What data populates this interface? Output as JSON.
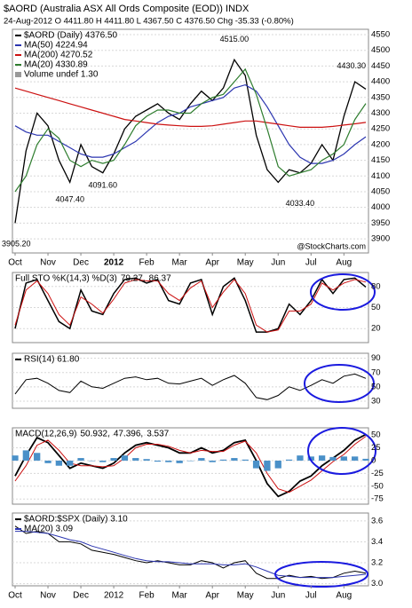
{
  "chart_data": [
    {
      "type": "line",
      "title": "$AORD (Australia ASX All Ords Composite (EOD)) INDX",
      "subtitle": "24-Aug-2012  O 4411.80  H 4411.80  L 4367.50  C 4376.50  Chg -35.33 (-0.80%)",
      "watermark": "@StockCharts.com",
      "categories": [
        "Oct",
        null,
        null,
        "Nov",
        null,
        null,
        "Dec",
        null,
        null,
        "2012",
        null,
        null,
        "Feb",
        null,
        null,
        "Mar",
        null,
        null,
        "Apr",
        null,
        null,
        "May",
        null,
        null,
        "Jun",
        null,
        null,
        "Jul",
        null,
        null,
        "Aug",
        null,
        null
      ],
      "series": [
        {
          "name": "$AORD (Daily) 4376.50",
          "color": "#000000",
          "width": 1.3,
          "values": [
            3950,
            4180,
            4300,
            4260,
            4150,
            4080,
            4200,
            4130,
            4110,
            4170,
            4250,
            4290,
            4310,
            4330,
            4300,
            4280,
            4330,
            4370,
            4340,
            4380,
            4470,
            4420,
            4230,
            4120,
            4080,
            4120,
            4110,
            4140,
            4200,
            4150,
            4290,
            4400,
            4376.5
          ]
        },
        {
          "name": "MA(50) 4224.94",
          "color": "#2b35b0",
          "width": 1.2,
          "values": [
            4260,
            4240,
            4230,
            4230,
            4210,
            4190,
            4170,
            4160,
            4160,
            4170,
            4190,
            4210,
            4240,
            4270,
            4290,
            4300,
            4320,
            4330,
            4340,
            4350,
            4380,
            4390,
            4370,
            4320,
            4260,
            4200,
            4160,
            4140,
            4140,
            4150,
            4170,
            4200,
            4224.94
          ]
        },
        {
          "name": "MA(200) 4270.52",
          "color": "#cc1111",
          "width": 1.2,
          "values": [
            4380,
            4370,
            4360,
            4350,
            4340,
            4330,
            4320,
            4310,
            4300,
            4290,
            4280,
            4275,
            4270,
            4265,
            4262,
            4260,
            4258,
            4258,
            4260,
            4265,
            4270,
            4275,
            4275,
            4270,
            4265,
            4260,
            4255,
            4255,
            4255,
            4258,
            4262,
            4266,
            4270.52
          ]
        },
        {
          "name": "MA(20) 4330.89",
          "color": "#2e7d2e",
          "width": 1.2,
          "values": [
            4050,
            4100,
            4200,
            4250,
            4220,
            4150,
            4130,
            4150,
            4140,
            4150,
            4200,
            4260,
            4290,
            4310,
            4310,
            4300,
            4300,
            4330,
            4350,
            4360,
            4400,
            4440,
            4360,
            4250,
            4130,
            4100,
            4110,
            4120,
            4150,
            4170,
            4200,
            4280,
            4330.89
          ]
        }
      ],
      "volume_label": "Volume undef 1.30",
      "annotations": [
        {
          "label": "3905.20",
          "value": 3905.2,
          "point": 0
        },
        {
          "label": "4047.40",
          "value": 4047.4,
          "point": 5
        },
        {
          "label": "4091.60",
          "value": 4091.6,
          "point": 8
        },
        {
          "label": "4515.00",
          "value": 4515,
          "point": 20
        },
        {
          "label": "4033.40",
          "value": 4033.4,
          "point": 26
        },
        {
          "label": "4430.30",
          "value": 4430.3,
          "point": 32
        }
      ],
      "ylim": [
        3855,
        4567
      ],
      "yticks": [
        3900,
        3950,
        4000,
        4050,
        4100,
        4150,
        4200,
        4250,
        4300,
        4350,
        4400,
        4450,
        4500,
        4550
      ],
      "grid": true
    },
    {
      "type": "line",
      "title": "Full STO %K(14,3) %D(3)",
      "series": [
        {
          "name": "79.27,",
          "color": "#000000",
          "width": 1.5,
          "values": [
            20,
            85,
            90,
            60,
            30,
            20,
            75,
            45,
            40,
            70,
            90,
            92,
            85,
            90,
            60,
            55,
            85,
            90,
            40,
            80,
            92,
            60,
            15,
            15,
            20,
            55,
            40,
            60,
            90,
            70,
            90,
            92,
            79.27
          ]
        },
        {
          "name": "86.37",
          "color": "#cc1111",
          "width": 1,
          "values": [
            25,
            75,
            88,
            70,
            40,
            25,
            65,
            55,
            42,
            62,
            85,
            90,
            88,
            88,
            70,
            60,
            78,
            88,
            50,
            72,
            90,
            70,
            25,
            15,
            18,
            45,
            45,
            55,
            85,
            75,
            85,
            90,
            86.37
          ]
        }
      ],
      "ylim": [
        0,
        100
      ],
      "yticks": [
        20,
        50,
        80
      ],
      "grid": true
    },
    {
      "type": "line",
      "series": [
        {
          "name": "RSI(14) 61.80",
          "color": "#000000",
          "width": 1,
          "values": [
            40,
            60,
            62,
            55,
            45,
            42,
            58,
            50,
            48,
            55,
            62,
            64,
            60,
            62,
            55,
            54,
            58,
            62,
            52,
            60,
            66,
            55,
            35,
            32,
            38,
            50,
            45,
            52,
            60,
            55,
            65,
            68,
            61.8
          ]
        }
      ],
      "ylim": [
        20,
        97
      ],
      "yticks": [
        30,
        50,
        70,
        90
      ],
      "grid": true
    },
    {
      "type": "line",
      "title": "MACD(12,26,9)",
      "series": [
        {
          "name": "50.932,",
          "color": "#000000",
          "width": 1.8,
          "values": [
            -30,
            10,
            45,
            35,
            10,
            -15,
            -5,
            -10,
            -15,
            -5,
            15,
            30,
            35,
            30,
            25,
            15,
            15,
            25,
            15,
            20,
            35,
            40,
            0,
            -45,
            -70,
            -60,
            -40,
            -30,
            -10,
            5,
            20,
            40,
            50.932
          ]
        },
        {
          "name": "47.396,",
          "color": "#cc1111",
          "width": 1,
          "values": [
            -40,
            -10,
            30,
            40,
            20,
            -5,
            -10,
            -10,
            -12,
            -10,
            5,
            25,
            32,
            32,
            28,
            20,
            15,
            20,
            18,
            18,
            30,
            38,
            15,
            -25,
            -55,
            -62,
            -50,
            -38,
            -20,
            -2,
            12,
            32,
            47.396
          ]
        },
        {
          "name": "3.537",
          "color": "#4a90c8",
          "type": "bar",
          "values": [
            10,
            20,
            15,
            -5,
            -10,
            -10,
            5,
            0,
            -3,
            5,
            10,
            5,
            3,
            -2,
            -3,
            -5,
            0,
            5,
            -3,
            2,
            5,
            2,
            -15,
            -20,
            -15,
            2,
            10,
            8,
            10,
            7,
            8,
            8,
            3.537
          ]
        }
      ],
      "ylim": [
        -85,
        64
      ],
      "yticks": [
        -75,
        -50,
        -25,
        0,
        25,
        50
      ],
      "grid": true
    },
    {
      "type": "line",
      "categories": [
        "Oct",
        null,
        null,
        "Nov",
        null,
        null,
        "Dec",
        null,
        null,
        "2012",
        null,
        null,
        "Feb",
        null,
        null,
        "Mar",
        null,
        null,
        "Apr",
        null,
        null,
        "May",
        null,
        null,
        "Jun",
        null,
        null,
        "Jul",
        null,
        null,
        "Aug",
        null,
        null
      ],
      "series": [
        {
          "name": "$AORD:$SPX (Daily) 3.10",
          "color": "#000000",
          "width": 1,
          "values": [
            3.55,
            3.48,
            3.5,
            3.48,
            3.4,
            3.4,
            3.38,
            3.32,
            3.3,
            3.28,
            3.25,
            3.22,
            3.2,
            3.22,
            3.2,
            3.18,
            3.18,
            3.22,
            3.2,
            3.15,
            3.2,
            3.22,
            3.1,
            3.05,
            3.05,
            3.08,
            3.06,
            3.07,
            3.05,
            3.06,
            3.1,
            3.12,
            3.1
          ]
        },
        {
          "name": "MA(20) 3.09",
          "color": "#2b35b0",
          "width": 1,
          "values": [
            3.5,
            3.5,
            3.49,
            3.48,
            3.45,
            3.42,
            3.4,
            3.36,
            3.33,
            3.3,
            3.27,
            3.24,
            3.22,
            3.21,
            3.21,
            3.2,
            3.19,
            3.19,
            3.19,
            3.18,
            3.18,
            3.19,
            3.16,
            3.12,
            3.08,
            3.07,
            3.06,
            3.06,
            3.06,
            3.06,
            3.07,
            3.08,
            3.09
          ]
        }
      ],
      "ylim": [
        2.98,
        3.675
      ],
      "yticks": [
        {
          "value": 3.0,
          "label": "3.0"
        },
        3.2,
        3.4,
        3.6
      ],
      "grid": true
    }
  ]
}
